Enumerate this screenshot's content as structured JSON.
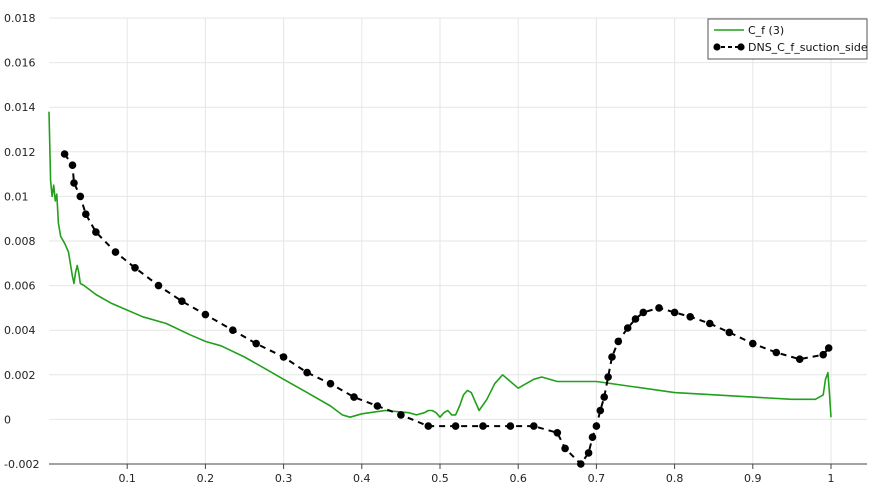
{
  "chart_data": {
    "type": "line",
    "title": "",
    "xlabel": "",
    "ylabel": "",
    "xlim": [
      0.0,
      1.05
    ],
    "ylim": [
      -0.002,
      0.018
    ],
    "grid": true,
    "legend_position": "top-right",
    "x_ticks": [
      {
        "value": 0.1,
        "label": "0.1"
      },
      {
        "value": 0.2,
        "label": "0.2"
      },
      {
        "value": 0.3,
        "label": "0.3"
      },
      {
        "value": 0.4,
        "label": "0.4"
      },
      {
        "value": 0.5,
        "label": "0.5"
      },
      {
        "value": 0.6,
        "label": "0.6"
      },
      {
        "value": 0.7,
        "label": "0.7"
      },
      {
        "value": 0.8,
        "label": "0.8"
      },
      {
        "value": 0.9,
        "label": "0.9"
      },
      {
        "value": 1.0,
        "label": "1"
      }
    ],
    "y_ticks": [
      {
        "value": -0.002,
        "label": "-0.002"
      },
      {
        "value": 0.0,
        "label": "0"
      },
      {
        "value": 0.002,
        "label": "0.002"
      },
      {
        "value": 0.004,
        "label": "0.004"
      },
      {
        "value": 0.006,
        "label": "0.006"
      },
      {
        "value": 0.008,
        "label": "0.008"
      },
      {
        "value": 0.01,
        "label": "0.01"
      },
      {
        "value": 0.012,
        "label": "0.012"
      },
      {
        "value": 0.014,
        "label": "0.014"
      },
      {
        "value": 0.016,
        "label": "0.016"
      },
      {
        "value": 0.018,
        "label": "0.018"
      }
    ],
    "series": [
      {
        "name": "C_f (3)",
        "color": "#22a01c",
        "style": "solid",
        "marker": "none",
        "x": [
          0.0,
          0.002,
          0.004,
          0.006,
          0.008,
          0.01,
          0.012,
          0.015,
          0.02,
          0.025,
          0.03,
          0.032,
          0.034,
          0.036,
          0.038,
          0.04,
          0.045,
          0.06,
          0.08,
          0.1,
          0.12,
          0.15,
          0.18,
          0.2,
          0.22,
          0.25,
          0.28,
          0.3,
          0.33,
          0.36,
          0.375,
          0.385,
          0.4,
          0.43,
          0.46,
          0.47,
          0.48,
          0.485,
          0.49,
          0.495,
          0.5,
          0.505,
          0.51,
          0.515,
          0.52,
          0.525,
          0.53,
          0.535,
          0.54,
          0.55,
          0.56,
          0.57,
          0.58,
          0.59,
          0.6,
          0.61,
          0.62,
          0.63,
          0.65,
          0.7,
          0.8,
          0.9,
          0.95,
          0.98,
          0.99,
          0.993,
          0.996,
          0.998,
          1.0
        ],
        "y": [
          0.0138,
          0.0107,
          0.01,
          0.0105,
          0.0098,
          0.0101,
          0.0088,
          0.0082,
          0.0079,
          0.0075,
          0.0064,
          0.0061,
          0.0066,
          0.0069,
          0.0066,
          0.0061,
          0.006,
          0.0056,
          0.0052,
          0.0049,
          0.0046,
          0.0043,
          0.0038,
          0.0035,
          0.0033,
          0.0028,
          0.0022,
          0.0018,
          0.0012,
          0.0006,
          0.0002,
          0.0001,
          0.00025,
          0.0004,
          0.0003,
          0.0002,
          0.0003,
          0.0004,
          0.0004,
          0.0003,
          0.0001,
          0.0003,
          0.0004,
          0.0002,
          0.0002,
          0.0006,
          0.0011,
          0.0013,
          0.0012,
          0.0004,
          0.0009,
          0.0016,
          0.002,
          0.0017,
          0.0014,
          0.0016,
          0.0018,
          0.0019,
          0.0017,
          0.0017,
          0.0012,
          0.001,
          0.0009,
          0.0009,
          0.0011,
          0.0018,
          0.0021,
          0.0012,
          0.0001
        ]
      },
      {
        "name": "DNS_C_f_suction_side",
        "color": "#000000",
        "style": "dashed",
        "marker": "circle",
        "x": [
          0.02,
          0.03,
          0.032,
          0.04,
          0.047,
          0.06,
          0.085,
          0.11,
          0.14,
          0.17,
          0.2,
          0.235,
          0.265,
          0.3,
          0.33,
          0.36,
          0.39,
          0.42,
          0.45,
          0.485,
          0.52,
          0.555,
          0.59,
          0.62,
          0.65,
          0.66,
          0.68,
          0.69,
          0.695,
          0.7,
          0.705,
          0.71,
          0.715,
          0.72,
          0.728,
          0.74,
          0.75,
          0.76,
          0.78,
          0.8,
          0.82,
          0.845,
          0.87,
          0.9,
          0.93,
          0.96,
          0.99,
          0.997
        ],
        "y": [
          0.0119,
          0.0114,
          0.0106,
          0.01,
          0.0092,
          0.0084,
          0.0075,
          0.0068,
          0.006,
          0.0053,
          0.0047,
          0.004,
          0.0034,
          0.0028,
          0.0021,
          0.0016,
          0.001,
          0.0006,
          0.0002,
          -0.0003,
          -0.0003,
          -0.0003,
          -0.0003,
          -0.0003,
          -0.0006,
          -0.0013,
          -0.002,
          -0.0015,
          -0.0008,
          -0.0003,
          0.0004,
          0.001,
          0.0019,
          0.0028,
          0.0035,
          0.0041,
          0.0045,
          0.0048,
          0.005,
          0.0048,
          0.0046,
          0.0043,
          0.0039,
          0.0034,
          0.003,
          0.0027,
          0.0029,
          0.0032
        ]
      }
    ]
  }
}
